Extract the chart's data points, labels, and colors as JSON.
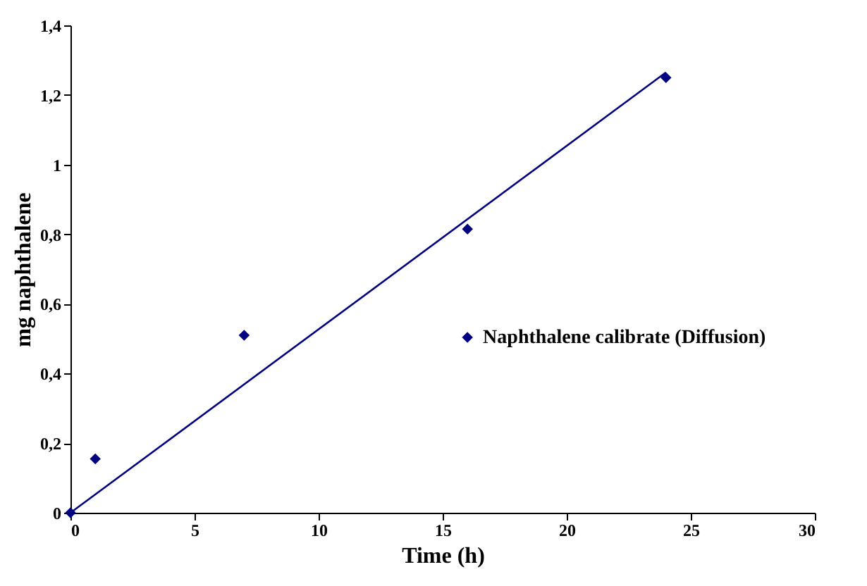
{
  "chart_data": {
    "type": "scatter",
    "xlabel": "Time (h)",
    "ylabel": "mg naphthalene",
    "xlim": [
      0,
      30
    ],
    "xticks": [
      0,
      5,
      10,
      15,
      20,
      25,
      30
    ],
    "ylim": [
      0,
      1.4
    ],
    "yticks": [
      0,
      {
        "value": 0.2,
        "label": "0,2"
      },
      {
        "value": 0.4,
        "label": "0,4"
      },
      {
        "value": 0.6,
        "label": "0,6"
      },
      {
        "value": 0.8,
        "label": "0,8"
      },
      1,
      {
        "value": 1.2,
        "label": "1,2"
      },
      {
        "value": 1.4,
        "label": "1,4"
      }
    ],
    "grid": false,
    "legend": "right",
    "series": [
      {
        "name": "Naphthalene calibrate (Diffusion)",
        "color": "#000080",
        "marker": "diamond",
        "x": [
          0,
          1,
          7,
          16,
          24
        ],
        "values": [
          0,
          0.155,
          0.51,
          0.815,
          1.25
        ]
      },
      {
        "type": "line",
        "color": "#000080",
        "x": [
          0,
          24
        ],
        "values": [
          0,
          1.265
        ]
      }
    ]
  }
}
